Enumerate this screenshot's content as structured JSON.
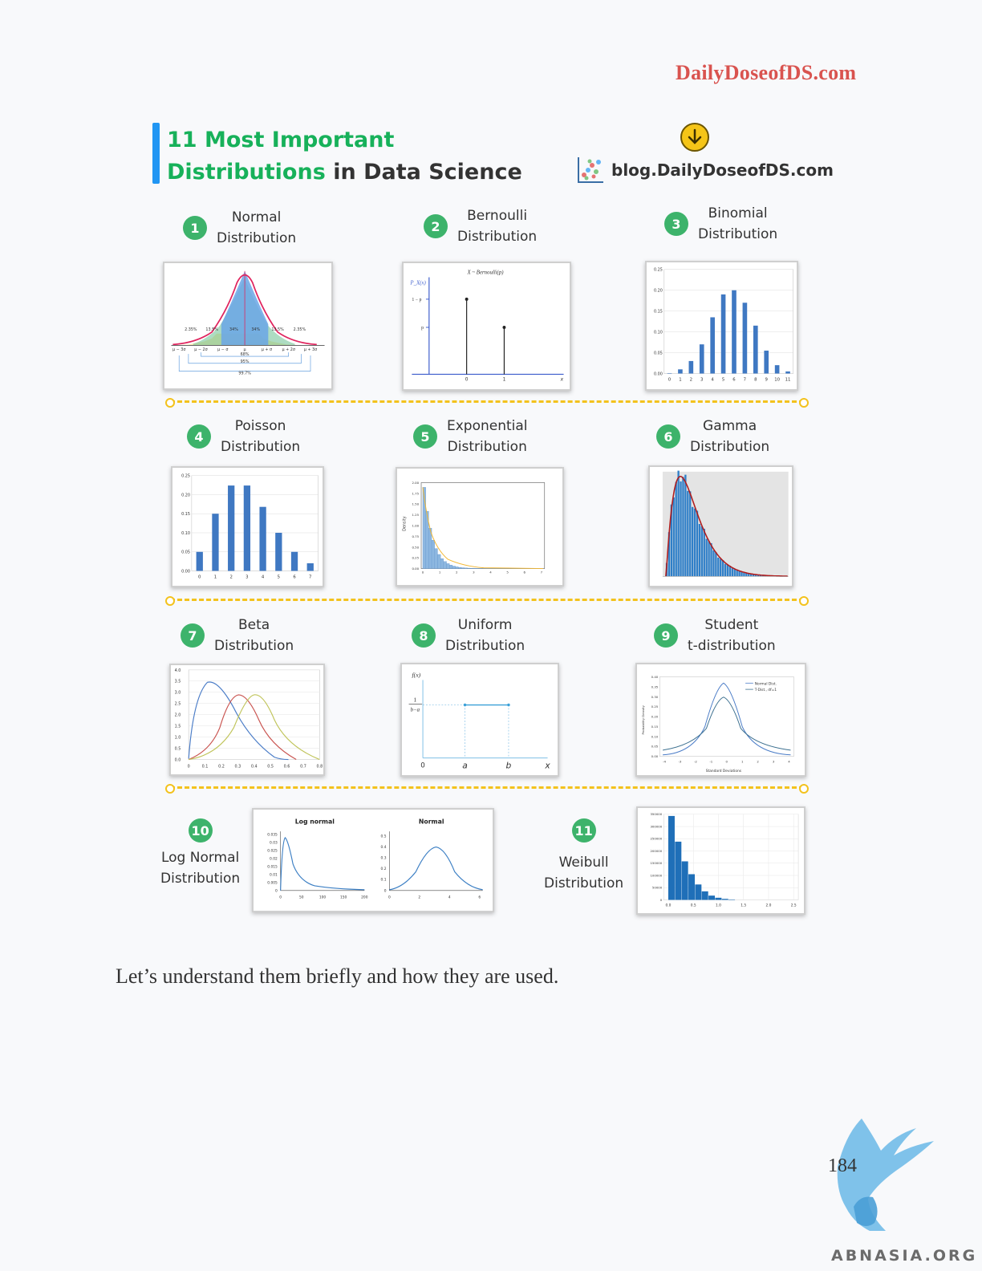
{
  "header": {
    "site": "DailyDoseofDS.com",
    "title_line1": "11 Most Important",
    "title_line2_green": "Distributions",
    "title_line2_rest": "in Data Science",
    "blog_url": "blog.DailyDoseofDS.com"
  },
  "distributions": [
    {
      "num": "1",
      "l1": "Normal",
      "l2": "Distribution"
    },
    {
      "num": "2",
      "l1": "Bernoulli",
      "l2": "Distribution"
    },
    {
      "num": "3",
      "l1": "Binomial",
      "l2": "Distribution"
    },
    {
      "num": "4",
      "l1": "Poisson",
      "l2": "Distribution"
    },
    {
      "num": "5",
      "l1": "Exponential",
      "l2": "Distribution"
    },
    {
      "num": "6",
      "l1": "Gamma",
      "l2": "Distribution"
    },
    {
      "num": "7",
      "l1": "Beta",
      "l2": "Distribution"
    },
    {
      "num": "8",
      "l1": "Uniform",
      "l2": "Distribution"
    },
    {
      "num": "9",
      "l1": "Student",
      "l2": "t-distribution"
    },
    {
      "num": "10",
      "l1": "Log Normal",
      "l2": "Distribution"
    },
    {
      "num": "11",
      "l1": "Weibull",
      "l2": "Distribution"
    }
  ],
  "charts": {
    "normal": {
      "pcts": [
        "2.35%",
        "13.5%",
        "34%",
        "34%",
        "13.5%",
        "2.35%"
      ],
      "xlabels": [
        "μ − 3σ",
        "μ − 2σ",
        "μ − σ",
        "μ",
        "μ + σ",
        "μ + 2σ",
        "μ + 3σ"
      ],
      "spans": [
        "68%",
        "95%",
        "99.7%"
      ]
    },
    "bernoulli": {
      "title": "X ~ Bernoulli(p)",
      "ylabel": "P_X(x)",
      "yticks": [
        "1 − p",
        "p"
      ],
      "xticks": [
        "0",
        "1"
      ],
      "xaxis": "x"
    },
    "binomial": {
      "yticks": [
        "0.00",
        "0.05",
        "0.10",
        "0.15",
        "0.20",
        "0.25"
      ],
      "xticks": [
        "0",
        "1",
        "2",
        "3",
        "4",
        "5",
        "6",
        "7",
        "8",
        "9",
        "10",
        "11"
      ],
      "values": [
        0.001,
        0.01,
        0.03,
        0.07,
        0.135,
        0.19,
        0.2,
        0.17,
        0.115,
        0.055,
        0.02,
        0.005
      ]
    },
    "poisson": {
      "yticks": [
        "0.00",
        "0.05",
        "0.10",
        "0.15",
        "0.20",
        "0.25"
      ],
      "xticks": [
        "0",
        "1",
        "2",
        "3",
        "4",
        "5",
        "6",
        "7"
      ],
      "values": [
        0.05,
        0.15,
        0.224,
        0.224,
        0.168,
        0.1,
        0.05,
        0.02
      ]
    },
    "exponential": {
      "ylabel": "Density",
      "yticks": [
        "0.00",
        "0.25",
        "0.50",
        "0.75",
        "1.00",
        "1.25",
        "1.50",
        "1.75",
        "2.00"
      ],
      "xticks": [
        "0",
        "1",
        "2",
        "3",
        "4",
        "5",
        "6",
        "7"
      ]
    },
    "beta": {
      "yticks": [
        "0.0",
        "0.5",
        "1.0",
        "1.5",
        "2.0",
        "2.5",
        "3.0",
        "3.5",
        "4.0"
      ],
      "xticks": [
        "0",
        "0.1",
        "0.2",
        "0.3",
        "0.4",
        "0.5",
        "0.6",
        "0.7",
        "0.8"
      ]
    },
    "uniform": {
      "ylabel": "f(x)",
      "frac_num": "1",
      "frac_den": "b−a",
      "xticks": [
        "0",
        "a",
        "b",
        "x"
      ]
    },
    "student": {
      "ylabel": "Probability Density",
      "xlabel": "Standard Deviations",
      "yticks": [
        "0.00",
        "0.05",
        "0.10",
        "0.15",
        "0.20",
        "0.25",
        "0.30",
        "0.35",
        "0.40"
      ],
      "xticks": [
        "-4",
        "-3",
        "-2",
        "-1",
        "0",
        "1",
        "2",
        "3",
        "4"
      ],
      "legend": [
        "Normal Dist.",
        "T-Dist., df=1"
      ]
    },
    "lognormal": {
      "left_title": "Log normal",
      "right_title": "Normal",
      "left_yticks": [
        "0",
        "0.005",
        "0.01",
        "0.015",
        "0.02",
        "0.025",
        "0.03",
        "0.035"
      ],
      "left_xticks": [
        "0",
        "50",
        "100",
        "150",
        "200"
      ],
      "right_yticks": [
        "0",
        "0.1",
        "0.2",
        "0.3",
        "0.4",
        "0.5"
      ],
      "right_xticks": [
        "0",
        "2",
        "4",
        "6"
      ]
    },
    "weibull": {
      "yticks": [
        "0",
        "50000",
        "100000",
        "150000",
        "200000",
        "250000",
        "300000",
        "350000"
      ],
      "xticks": [
        "0.0",
        "0.5",
        "1.0",
        "1.5",
        "2.0",
        "2.5"
      ]
    }
  },
  "footer": {
    "text": "Let’s understand them briefly and how they are used.",
    "page_number": "184",
    "watermark": "ABNASIA.ORG"
  }
}
